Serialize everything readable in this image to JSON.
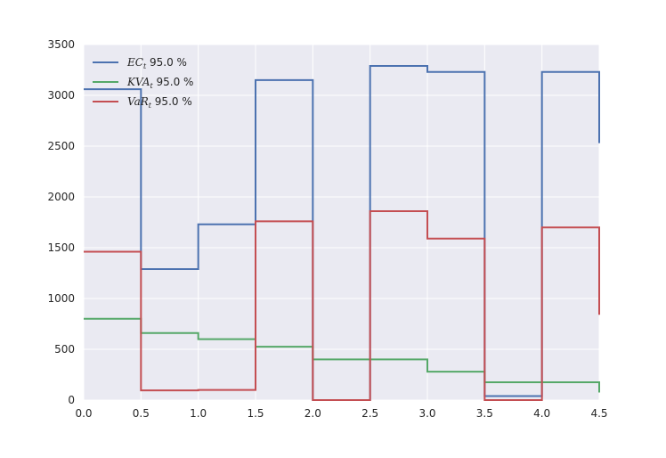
{
  "chart_data": {
    "type": "line",
    "step": "post",
    "title": "",
    "xlabel": "",
    "ylabel": "",
    "xlim": [
      0.0,
      4.5
    ],
    "ylim": [
      0,
      3500
    ],
    "grid": true,
    "legend_position": "top-left",
    "xticks": [
      "0.0",
      "0.5",
      "1.0",
      "1.5",
      "2.0",
      "2.5",
      "3.0",
      "3.5",
      "4.0",
      "4.5"
    ],
    "yticks": [
      "0",
      "500",
      "1000",
      "1500",
      "2000",
      "2500",
      "3000",
      "3500"
    ],
    "x": [
      0.0,
      0.5,
      1.0,
      1.5,
      2.0,
      2.5,
      3.0,
      3.5,
      4.0,
      4.5
    ],
    "series": [
      {
        "name": "EC_t",
        "legend_symbol": "EC",
        "legend_sub": "t",
        "legend_suffix": " 95.0 %",
        "color": "#4C72B0",
        "values": [
          3060,
          1290,
          1730,
          3150,
          0,
          3290,
          3230,
          40,
          3230,
          2530
        ]
      },
      {
        "name": "KVA_t",
        "legend_symbol": "KVA",
        "legend_sub": "t",
        "legend_suffix": " 95.0 %",
        "color": "#55A868",
        "values": [
          800,
          660,
          600,
          525,
          400,
          400,
          280,
          175,
          175,
          75
        ]
      },
      {
        "name": "VaR_t",
        "legend_symbol": "VaR",
        "legend_sub": "t",
        "legend_suffix": " 95.0 %",
        "color": "#C44E52",
        "values": [
          1460,
          95,
          100,
          1760,
          0,
          1860,
          1590,
          0,
          1700,
          840
        ]
      }
    ]
  },
  "colors": {
    "background": "#EAEAF2",
    "grid": "#FFFFFF"
  }
}
